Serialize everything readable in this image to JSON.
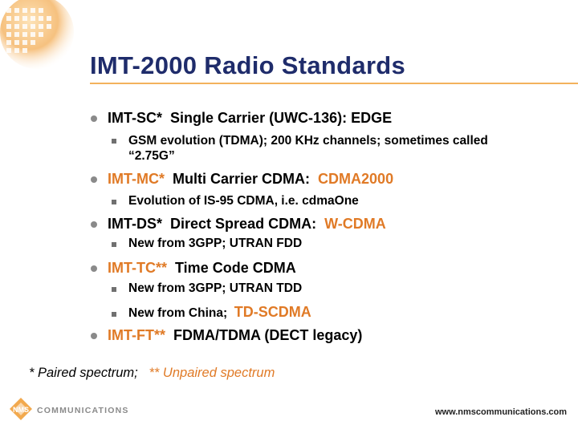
{
  "title": "IMT-2000 Radio Standards",
  "items": [
    {
      "key": "IMT-SC*",
      "desc": "Single Carrier (UWC-136): EDGE",
      "highlight": "",
      "subs": [
        {
          "text": "GSM evolution (TDMA); 200 KHz channels; sometimes called “2.75G”",
          "highlight": ""
        }
      ]
    },
    {
      "key": "IMT-MC*",
      "desc": "Multi Carrier CDMA:",
      "highlight": "CDMA2000",
      "subs": [
        {
          "text": "Evolution of IS-95 CDMA, i.e. cdmaOne",
          "highlight": ""
        }
      ]
    },
    {
      "key": "IMT-DS*",
      "desc": "Direct Spread CDMA:",
      "highlight": "W-CDMA",
      "subs": [
        {
          "text": "New from 3GPP; UTRAN FDD",
          "highlight": ""
        }
      ]
    },
    {
      "key": "IMT-TC**",
      "desc": "Time Code CDMA",
      "highlight": "",
      "subs": [
        {
          "text": "New from 3GPP; UTRAN TDD",
          "highlight": ""
        },
        {
          "text": "New from China;",
          "highlight": "TD-SCDMA"
        }
      ]
    },
    {
      "key": "IMT-FT**",
      "desc": "FDMA/TDMA (DECT legacy)",
      "highlight": "",
      "subs": []
    }
  ],
  "footnote": {
    "paired": "* Paired spectrum;",
    "unpaired": "** Unpaired spectrum"
  },
  "footer": {
    "logo_mark": "NMS",
    "logo_text": "COMMUNICATIONS",
    "url": "www.nmscommunications.com"
  },
  "colors": {
    "title": "#1f2c6b",
    "accent": "#e07a26",
    "rule": "#f3b25c"
  }
}
